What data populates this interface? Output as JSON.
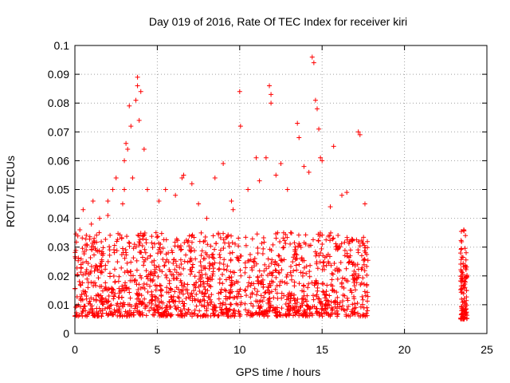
{
  "chart_data": {
    "type": "scatter",
    "title": "Day 019 of 2016, Rate Of TEC Index for receiver kiri",
    "xlabel": "GPS time / hours",
    "ylabel": "ROTI / TECUs",
    "xlim": [
      0,
      25
    ],
    "ylim": [
      0,
      0.1
    ],
    "xticks": [
      0,
      5,
      10,
      15,
      20,
      25
    ],
    "xtick_labels": [
      "0",
      "5",
      "10",
      "15",
      "20",
      "25"
    ],
    "yticks": [
      0,
      0.01,
      0.02,
      0.03,
      0.04,
      0.05,
      0.06,
      0.07,
      0.08,
      0.09,
      0.1
    ],
    "ytick_labels": [
      "0",
      "0.01",
      "0.02",
      "0.03",
      "0.04",
      "0.05",
      "0.06",
      "0.07",
      "0.08",
      "0.09",
      "0.1"
    ],
    "grid": true,
    "marker": "+",
    "color": "#ff0000",
    "series": [
      {
        "name": "ROTI",
        "segments": [
          {
            "x_range": [
              0.0,
              17.8
            ],
            "gap": [
              10.1,
              10.3
            ],
            "typical_y": [
              0.006,
              0.035
            ]
          },
          {
            "x_range": [
              23.4,
              23.8
            ],
            "typical_y": [
              0.005,
              0.036
            ]
          }
        ],
        "points": [
          [
            0.3,
            0.036
          ],
          [
            0.5,
            0.043
          ],
          [
            1.0,
            0.038
          ],
          [
            1.1,
            0.046
          ],
          [
            1.5,
            0.04
          ],
          [
            2.0,
            0.041
          ],
          [
            2.0,
            0.046
          ],
          [
            2.3,
            0.05
          ],
          [
            2.5,
            0.054
          ],
          [
            2.9,
            0.045
          ],
          [
            3.0,
            0.05
          ],
          [
            3.0,
            0.06
          ],
          [
            3.1,
            0.066
          ],
          [
            3.2,
            0.064
          ],
          [
            3.3,
            0.079
          ],
          [
            3.4,
            0.072
          ],
          [
            3.5,
            0.054
          ],
          [
            3.7,
            0.081
          ],
          [
            3.8,
            0.086
          ],
          [
            3.8,
            0.089
          ],
          [
            3.9,
            0.074
          ],
          [
            4.0,
            0.084
          ],
          [
            4.2,
            0.064
          ],
          [
            4.4,
            0.05
          ],
          [
            5.1,
            0.046
          ],
          [
            5.5,
            0.05
          ],
          [
            6.1,
            0.048
          ],
          [
            6.5,
            0.054
          ],
          [
            6.6,
            0.055
          ],
          [
            7.1,
            0.052
          ],
          [
            7.5,
            0.045
          ],
          [
            8.0,
            0.04
          ],
          [
            8.5,
            0.054
          ],
          [
            9.0,
            0.059
          ],
          [
            9.5,
            0.046
          ],
          [
            9.6,
            0.043
          ],
          [
            10.0,
            0.084
          ],
          [
            10.05,
            0.072
          ],
          [
            10.5,
            0.05
          ],
          [
            11.0,
            0.061
          ],
          [
            11.2,
            0.053
          ],
          [
            11.6,
            0.061
          ],
          [
            11.8,
            0.086
          ],
          [
            11.9,
            0.083
          ],
          [
            11.9,
            0.08
          ],
          [
            12.2,
            0.055
          ],
          [
            12.5,
            0.059
          ],
          [
            12.9,
            0.05
          ],
          [
            13.5,
            0.073
          ],
          [
            13.6,
            0.068
          ],
          [
            13.9,
            0.058
          ],
          [
            14.2,
            0.056
          ],
          [
            14.4,
            0.096
          ],
          [
            14.5,
            0.094
          ],
          [
            14.6,
            0.081
          ],
          [
            14.7,
            0.078
          ],
          [
            14.8,
            0.071
          ],
          [
            14.9,
            0.061
          ],
          [
            15.0,
            0.06
          ],
          [
            15.5,
            0.044
          ],
          [
            15.7,
            0.065
          ],
          [
            16.2,
            0.048
          ],
          [
            16.5,
            0.049
          ],
          [
            17.2,
            0.07
          ],
          [
            17.3,
            0.069
          ],
          [
            17.6,
            0.045
          ],
          [
            23.6,
            0.036
          ],
          [
            23.7,
            0.034
          ]
        ]
      }
    ]
  }
}
